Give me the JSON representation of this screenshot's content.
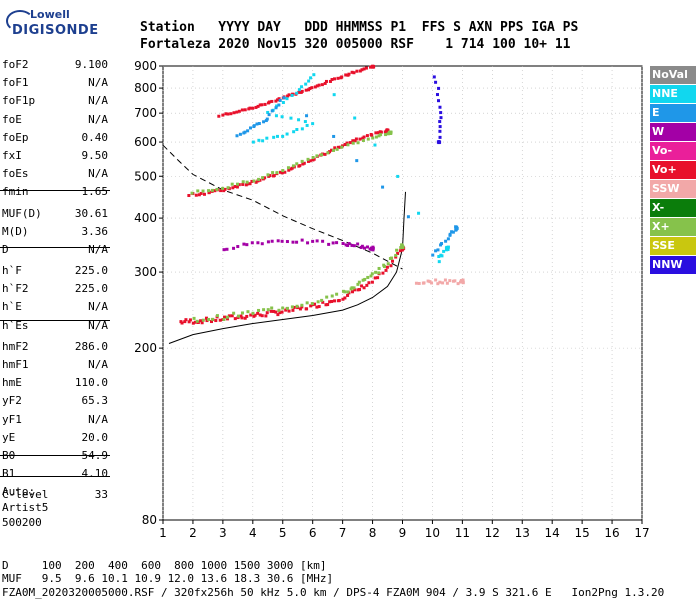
{
  "logo": {
    "line1": "Lowell",
    "line2": "DIGISONDE"
  },
  "header": {
    "row1": "Station   YYYY DAY   DDD HHMMSS P1  FFS S AXN PPS IGA PS",
    "row2": "Fortaleza 2020 Nov15 320 005000 RSF    1 714 100 10+ 11"
  },
  "params": [
    {
      "k": "foF2",
      "v": "9.100"
    },
    {
      "k": "foF1",
      "v": "N/A"
    },
    {
      "k": "foF1p",
      "v": "N/A"
    },
    {
      "k": "foE",
      "v": "N/A"
    },
    {
      "k": "foEp",
      "v": "0.40"
    },
    {
      "k": "fxI",
      "v": "9.50"
    },
    {
      "k": "foEs",
      "v": "N/A"
    },
    {
      "k": "fmin",
      "v": "1.65"
    },
    {
      "k": "MUF(D)",
      "v": "30.61"
    },
    {
      "k": "M(D)",
      "v": "3.36"
    },
    {
      "k": "D",
      "v": "N/A"
    },
    {
      "k": "h`F",
      "v": "225.0"
    },
    {
      "k": "h`F2",
      "v": "225.0"
    },
    {
      "k": "h`E",
      "v": "N/A"
    },
    {
      "k": "h`Es",
      "v": "N/A"
    },
    {
      "k": "hmF2",
      "v": "286.0"
    },
    {
      "k": "hmF1",
      "v": "N/A"
    },
    {
      "k": "hmE",
      "v": "110.0"
    },
    {
      "k": "yF2",
      "v": "65.3"
    },
    {
      "k": "yF1",
      "v": "N/A"
    },
    {
      "k": "yE",
      "v": "20.0"
    },
    {
      "k": "B0",
      "v": "54.9"
    },
    {
      "k": "B1",
      "v": "4.10"
    },
    {
      "k": "C-level",
      "v": "33"
    }
  ],
  "auto": {
    "l1": "Auto:",
    "l2": "Artist5",
    "l3": "500200"
  },
  "legend": [
    {
      "label": "NoVal",
      "color": "#8a8a8a"
    },
    {
      "label": "NNE",
      "color": "#11d7ef"
    },
    {
      "label": "E",
      "color": "#1f97e8"
    },
    {
      "label": "W",
      "color": "#a300a6"
    },
    {
      "label": "Vo-",
      "color": "#ea1f9a"
    },
    {
      "label": "Vo+",
      "color": "#e8102b"
    },
    {
      "label": "SSW",
      "color": "#f2a8a8"
    },
    {
      "label": "X-",
      "color": "#0b7d0b"
    },
    {
      "label": "X+",
      "color": "#86c24b"
    },
    {
      "label": "SSE",
      "color": "#c9c70f"
    },
    {
      "label": "NNW",
      "color": "#2a0ee0"
    }
  ],
  "footer": {
    "l1": "D     100  200  400  600  800 1000 1500 3000 [km]",
    "l2": "MUF   9.5  9.6 10.1 10.9 12.0 13.6 18.3 30.6 [MHz]",
    "l3": "FZA0M_2020320005000.RSF / 320fx256h 50 kHz 5.0 km / DPS-4 FZA0M 904 / 3.9 S 321.6 E   Ion2Png 1.3.20"
  },
  "chart_data": {
    "type": "scatter",
    "title": "",
    "xlabel": "",
    "ylabel": "",
    "xlim": [
      1,
      17
    ],
    "ylim": [
      80,
      900
    ],
    "yscale": "log",
    "x_ticks": [
      1,
      2,
      3,
      4,
      5,
      6,
      7,
      8,
      9,
      10,
      11,
      12,
      13,
      14,
      15,
      16,
      17
    ],
    "y_ticks": [
      80,
      200,
      300,
      400,
      500,
      600,
      700,
      800,
      900
    ],
    "grid": "dotted",
    "legend_position": "right",
    "series": [
      {
        "name": "Vo+",
        "color": "#e8102b",
        "points": [
          [
            1.6,
            230
          ],
          [
            2,
            231
          ],
          [
            2.5,
            232
          ],
          [
            3,
            234
          ],
          [
            3.5,
            236
          ],
          [
            4,
            238
          ],
          [
            4.5,
            240
          ],
          [
            5,
            243
          ],
          [
            5.5,
            246
          ],
          [
            6,
            250
          ],
          [
            6.5,
            255
          ],
          [
            7,
            262
          ],
          [
            7.5,
            272
          ],
          [
            8,
            285
          ],
          [
            8.5,
            305
          ],
          [
            9.0,
            340
          ]
        ]
      },
      {
        "name": "Vo+",
        "color": "#e8102b",
        "points": [
          [
            1.9,
            452
          ],
          [
            2.5,
            458
          ],
          [
            3,
            465
          ],
          [
            3.5,
            475
          ],
          [
            4,
            485
          ],
          [
            4.5,
            497
          ],
          [
            5,
            510
          ],
          [
            5.5,
            527
          ],
          [
            6,
            546
          ],
          [
            6.5,
            568
          ],
          [
            7,
            590
          ],
          [
            7.5,
            610
          ],
          [
            8,
            625
          ],
          [
            8.5,
            638
          ]
        ]
      },
      {
        "name": "Vo+",
        "color": "#e8102b",
        "points": [
          [
            2.9,
            690
          ],
          [
            3.5,
            705
          ],
          [
            4,
            720
          ],
          [
            4.5,
            738
          ],
          [
            5,
            760
          ],
          [
            5.5,
            780
          ],
          [
            6,
            800
          ],
          [
            6.5,
            826
          ],
          [
            7,
            852
          ],
          [
            7.5,
            875
          ],
          [
            8,
            897
          ]
        ]
      },
      {
        "name": "X+",
        "color": "#86c24b",
        "points": [
          [
            2,
            232
          ],
          [
            3,
            236
          ],
          [
            4,
            242
          ],
          [
            5,
            248
          ],
          [
            6,
            256
          ],
          [
            7,
            268
          ],
          [
            7.5,
            280
          ],
          [
            8,
            295
          ],
          [
            8.5,
            315
          ],
          [
            9.0,
            345
          ]
        ]
      },
      {
        "name": "X+",
        "color": "#86c24b",
        "points": [
          [
            2,
            458
          ],
          [
            3,
            470
          ],
          [
            4,
            490
          ],
          [
            5,
            516
          ],
          [
            6,
            550
          ],
          [
            7,
            585
          ],
          [
            8,
            615
          ],
          [
            8.6,
            630
          ]
        ]
      },
      {
        "name": "W",
        "color": "#a300a6",
        "points": [
          [
            3,
            340
          ],
          [
            4,
            350
          ],
          [
            5,
            355
          ],
          [
            6,
            352
          ],
          [
            7,
            348
          ],
          [
            7.5,
            346
          ],
          [
            8,
            340
          ]
        ]
      },
      {
        "name": "NNE",
        "color": "#11d7ef",
        "points": [
          [
            4,
            600
          ],
          [
            5,
            620
          ],
          [
            6,
            660
          ],
          [
            4.5,
            700
          ],
          [
            5.5,
            780
          ],
          [
            6,
            860
          ],
          [
            10.2,
            320
          ],
          [
            10.5,
            340
          ]
        ]
      },
      {
        "name": "E",
        "color": "#1f97e8",
        "points": [
          [
            3.5,
            620
          ],
          [
            4,
            650
          ],
          [
            4.5,
            680
          ],
          [
            5,
            760
          ],
          [
            10,
            330
          ],
          [
            10.5,
            360
          ],
          [
            10.8,
            380
          ]
        ]
      },
      {
        "name": "NNW",
        "color": "#2a0ee0",
        "points": [
          [
            10.1,
            850
          ],
          [
            10.3,
            700
          ],
          [
            10.2,
            600
          ]
        ]
      },
      {
        "name": "SSW",
        "color": "#f2a8a8",
        "points": [
          [
            9.5,
            285
          ],
          [
            10,
            285
          ],
          [
            10.5,
            285
          ],
          [
            11,
            285
          ]
        ]
      }
    ],
    "curves": [
      {
        "name": "model-profile",
        "points": [
          [
            1.2,
            205
          ],
          [
            2,
            215
          ],
          [
            3,
            222
          ],
          [
            4,
            228
          ],
          [
            5,
            233
          ],
          [
            6,
            238
          ],
          [
            7,
            245
          ],
          [
            7.5,
            252
          ],
          [
            8,
            262
          ],
          [
            8.5,
            278
          ],
          [
            8.8,
            300
          ],
          [
            9.0,
            340
          ],
          [
            9.05,
            400
          ],
          [
            9.1,
            460
          ]
        ]
      },
      {
        "name": "model-dashed",
        "points": [
          [
            1.0,
            590
          ],
          [
            1.5,
            545
          ],
          [
            2,
            505
          ],
          [
            3,
            465
          ],
          [
            4,
            440
          ],
          [
            5,
            405
          ],
          [
            6,
            378
          ],
          [
            7,
            355
          ],
          [
            8,
            332
          ],
          [
            8.5,
            318
          ],
          [
            9.0,
            305
          ]
        ]
      }
    ]
  }
}
